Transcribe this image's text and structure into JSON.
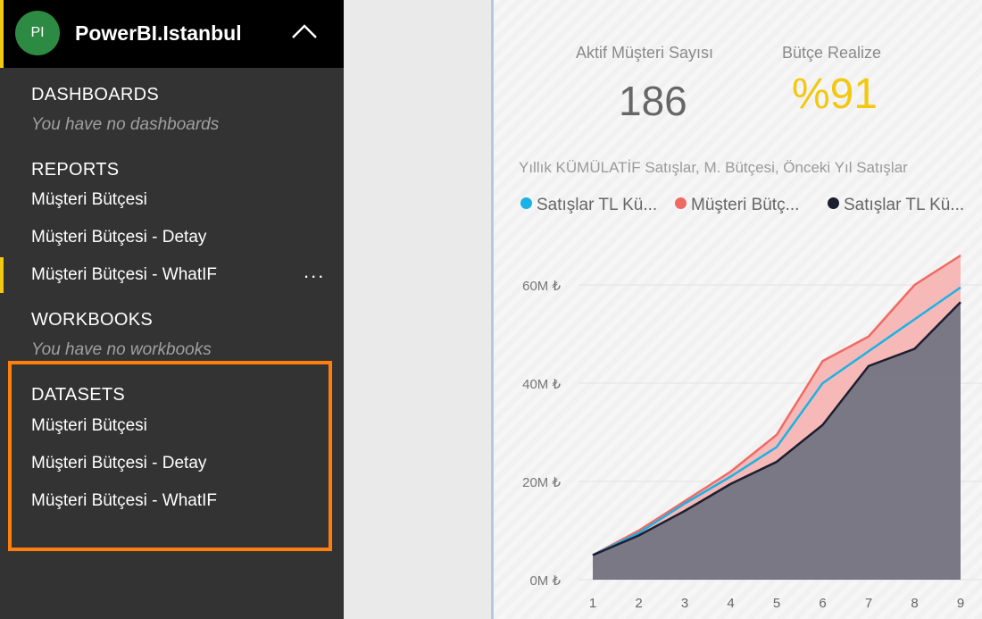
{
  "workspace": {
    "initials": "PI",
    "name": "PowerBI.Istanbul",
    "accent": "#f2c811",
    "avatar_color": "#2d8a43"
  },
  "sidebar": {
    "dashboards": {
      "title": "DASHBOARDS",
      "empty": "You have no dashboards"
    },
    "reports": {
      "title": "REPORTS",
      "items": [
        "Müşteri Bütçesi",
        "Müşteri Bütçesi - Detay",
        "Müşteri Bütçesi - WhatIF"
      ],
      "active_index": 2
    },
    "more_label": "...",
    "workbooks": {
      "title": "WORKBOOKS",
      "empty": "You have no workbooks"
    },
    "datasets": {
      "title": "DATASETS",
      "items": [
        "Müşteri Bütçesi",
        "Müşteri Bütçesi - Detay",
        "Müşteri Bütçesi - WhatIF"
      ],
      "highlight_color": "#ff7f0e"
    }
  },
  "kpis": [
    {
      "label": "Aktif Müşteri Sayısı",
      "value": "186",
      "color": "#666666"
    },
    {
      "label": "Bütçe Realize",
      "value": "%91",
      "color": "#f2c811"
    }
  ],
  "chart_data": {
    "type": "area",
    "title": "Yıllık KÜMÜLATİF Satışlar, M. Bütçesi, Önceki Yıl Satışlar",
    "legend": [
      "Satışlar TL Kü...",
      "Müşteri Bütç...",
      "Satışlar TL Kü..."
    ],
    "x": [
      1,
      2,
      3,
      4,
      5,
      6,
      7,
      8,
      9
    ],
    "ylim": [
      0,
      60
    ],
    "yticks": [
      "0M ₺",
      "20M ₺",
      "40M ₺",
      "60M ₺"
    ],
    "ytick_values": [
      0,
      20,
      40,
      60
    ],
    "series": [
      {
        "name": "Satışlar TL Kü...",
        "color": "#1ab2e6",
        "values": [
          5,
          9.5,
          15.5,
          21,
          27,
          40,
          46.5,
          53,
          59.5
        ]
      },
      {
        "name": "Müşteri Bütç...",
        "color": "#f06a64",
        "values": [
          5,
          10,
          16,
          22,
          29.5,
          44.5,
          49.5,
          60,
          66
        ]
      },
      {
        "name": "Satışlar TL Kü...",
        "color": "#1b1f2e",
        "values": [
          5,
          9,
          14,
          19.5,
          24,
          31.5,
          43.5,
          47,
          56.5
        ]
      }
    ]
  }
}
